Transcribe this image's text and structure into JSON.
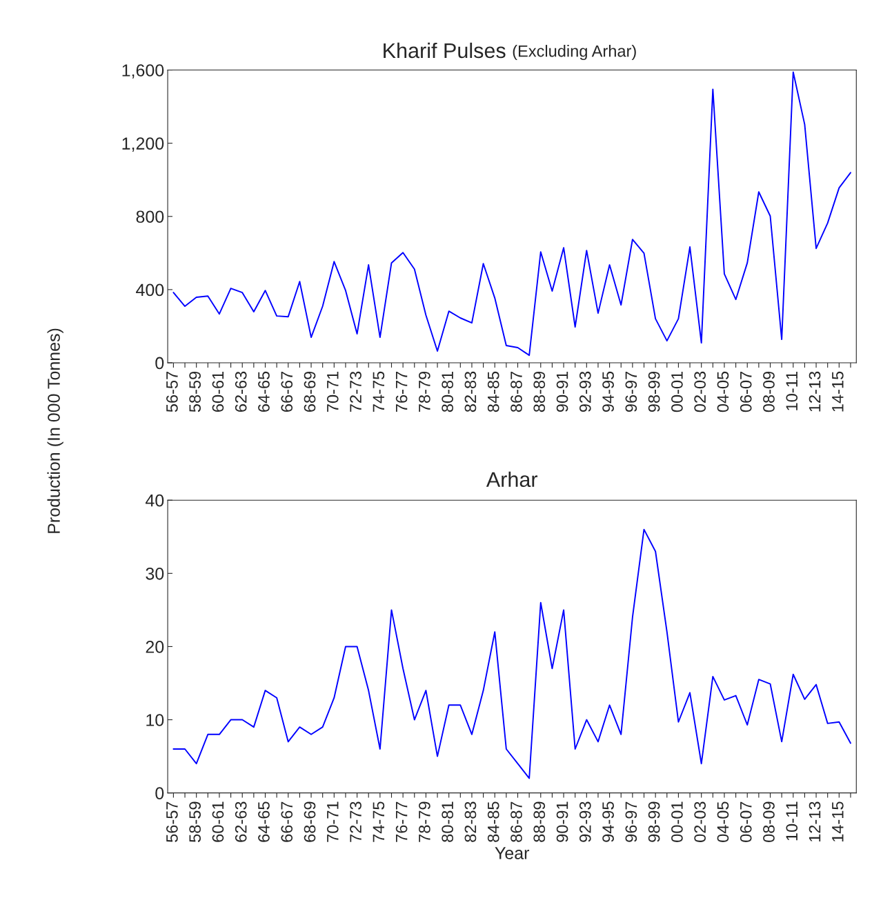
{
  "chart_data": [
    {
      "type": "line",
      "title": "Kharif Pulses",
      "subtitle": "(Excluding Arhar)",
      "ylabel": "Production (In 000 Tonnes)",
      "categories": [
        "56-57",
        null,
        "58-59",
        null,
        "60-61",
        null,
        "62-63",
        null,
        "64-65",
        null,
        "66-67",
        null,
        "68-69",
        null,
        "70-71",
        null,
        "72-73",
        null,
        "74-75",
        null,
        "76-77",
        null,
        "78-79",
        null,
        "80-81",
        null,
        "82-83",
        null,
        "84-85",
        null,
        "86-87",
        null,
        "88-89",
        null,
        "90-91",
        null,
        "92-93",
        null,
        "94-95",
        null,
        "96-97",
        null,
        "98-99",
        null,
        "00-01",
        null,
        "02-03",
        null,
        "04-05",
        null,
        "06-07",
        null,
        "08-09",
        null,
        "10-11",
        null,
        "12-13",
        null,
        "14-15",
        null
      ],
      "series": [
        {
          "color": "#0000ff",
          "values": [
            384,
            309,
            358,
            365,
            267,
            407,
            384,
            279,
            395,
            256,
            252,
            444,
            139,
            309,
            553,
            395,
            158,
            535,
            139,
            546,
            602,
            512,
            260,
            64,
            282,
            245,
            218,
            542,
            354,
            94,
            83,
            41,
            606,
            392,
            629,
            196,
            614,
            271,
            535,
            316,
            674,
            599,
            241,
            120,
            241,
            633,
            109,
            1495,
            486,
            346,
            546,
            934,
            802,
            128,
            1589,
            1303,
            625,
            764,
            956,
            1039
          ]
        }
      ],
      "ylim": [
        0,
        1600
      ],
      "yticks": [
        0,
        {
          "value": 400,
          "label": "400"
        },
        {
          "value": 800,
          "label": "800"
        },
        {
          "value": 1200,
          "label": "1,200"
        },
        {
          "value": 1600,
          "label": "1,600"
        }
      ],
      "grid": false,
      "legend": false
    },
    {
      "type": "line",
      "title": "Arhar",
      "xlabel": "Year",
      "categories": [
        "56-57",
        null,
        "58-59",
        null,
        "60-61",
        null,
        "62-63",
        null,
        "64-65",
        null,
        "66-67",
        null,
        "68-69",
        null,
        "70-71",
        null,
        "72-73",
        null,
        "74-75",
        null,
        "76-77",
        null,
        "78-79",
        null,
        "80-81",
        null,
        "82-83",
        null,
        "84-85",
        null,
        "86-87",
        null,
        "88-89",
        null,
        "90-91",
        null,
        "92-93",
        null,
        "94-95",
        null,
        "96-97",
        null,
        "98-99",
        null,
        "00-01",
        null,
        "02-03",
        null,
        "04-05",
        null,
        "06-07",
        null,
        "08-09",
        null,
        "10-11",
        null,
        "12-13",
        null,
        "14-15",
        null
      ],
      "series": [
        {
          "color": "#0000ff",
          "values": [
            6,
            6,
            4,
            8,
            8,
            10,
            10,
            9,
            14,
            13,
            7,
            9,
            8,
            9,
            13,
            20,
            20,
            14,
            6,
            25,
            17,
            10,
            14,
            5,
            12,
            12,
            8,
            14,
            22,
            6,
            4,
            2,
            26,
            17,
            25,
            6,
            10,
            7,
            12,
            8,
            24,
            36,
            33,
            22,
            9.7,
            13.7,
            4,
            15.9,
            12.7,
            13.3,
            9.3,
            15.5,
            14.9,
            7,
            16.2,
            12.8,
            14.8,
            9.5,
            9.7,
            6.8
          ]
        }
      ],
      "ylim": [
        0,
        40
      ],
      "yticks": [
        0,
        10,
        20,
        30,
        40
      ],
      "grid": false,
      "legend": false
    }
  ]
}
